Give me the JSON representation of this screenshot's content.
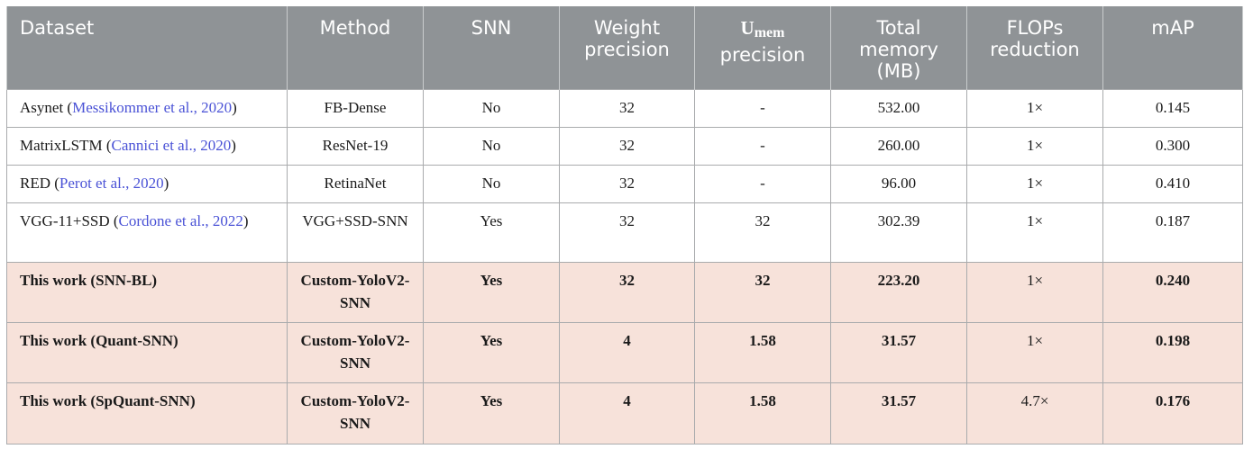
{
  "columns": {
    "dataset": "Dataset",
    "method": "Method",
    "snn": "SNN",
    "weight_precision": "Weight precision",
    "umem_base": "U",
    "umem_sub": "mem",
    "umem_rest": "precision",
    "total_memory": "Total memory (MB)",
    "flops": "FLOPs reduction",
    "map": "mAP"
  },
  "rows": [
    {
      "dataset_prefix": "Asynet (",
      "citation": "Messikommer et al., 2020",
      "dataset_suffix": ")",
      "method": "FB-Dense",
      "snn": "No",
      "weight": "32",
      "umem": "-",
      "memory": "532.00",
      "flops": "1×",
      "map": "0.145"
    },
    {
      "dataset_prefix": "MatrixLSTM (",
      "citation": "Cannici et al., 2020",
      "dataset_suffix": ")",
      "method": "ResNet-19",
      "snn": "No",
      "weight": "32",
      "umem": "-",
      "memory": "260.00",
      "flops": "1×",
      "map": "0.300"
    },
    {
      "dataset_prefix": "RED (",
      "citation": "Perot et al., 2020",
      "dataset_suffix": ")",
      "method": "RetinaNet",
      "snn": "No",
      "weight": "32",
      "umem": "-",
      "memory": "96.00",
      "flops": "1×",
      "map": "0.410"
    },
    {
      "dataset_prefix": "VGG-11+SSD (",
      "citation": "Cordone et al., 2022",
      "dataset_suffix": ")",
      "method": "VGG+SSD-SNN",
      "snn": "Yes",
      "weight": "32",
      "umem": "32",
      "memory": "302.39",
      "flops": "1×",
      "map": "0.187"
    },
    {
      "dataset": "This work (SNN-BL)",
      "method": "Custom-YoloV2-SNN",
      "snn": "Yes",
      "weight": "32",
      "umem": "32",
      "memory": "223.20",
      "flops": "1×",
      "map": "0.240"
    },
    {
      "dataset": "This work (Quant-SNN)",
      "method": "Custom-YoloV2-SNN",
      "snn": "Yes",
      "weight": "4",
      "umem": "1.58",
      "memory": "31.57",
      "flops": "1×",
      "map": "0.198"
    },
    {
      "dataset": "This work (SpQuant-SNN)",
      "method": "Custom-YoloV2-SNN",
      "snn": "Yes",
      "weight": "4",
      "umem": "1.58",
      "memory": "31.57",
      "flops": "4.7×",
      "map": "0.176"
    }
  ]
}
